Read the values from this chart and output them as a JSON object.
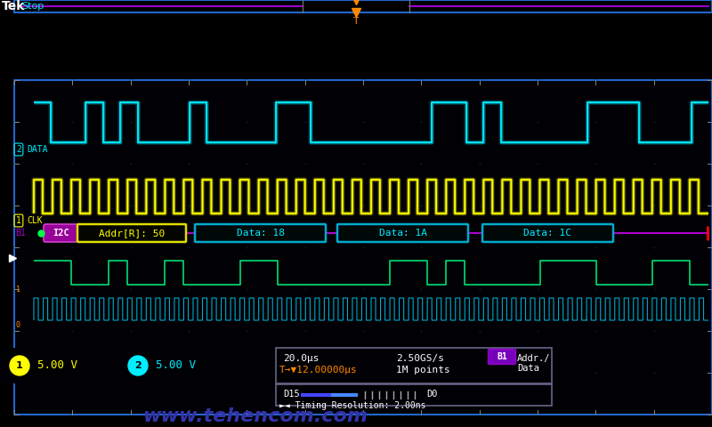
{
  "bg_color": "#000000",
  "screen_bg": "#000008",
  "border_color": "#2266cc",
  "cyan_color": "#00eeff",
  "yellow_color": "#ffff00",
  "purple_color": "#cc00ff",
  "green_color": "#00ff88",
  "orange_color": "#ff8800",
  "white_color": "#ffffff",
  "watermark_color": "#3333aa",
  "i2c_label_bg": "#aa00cc",
  "addr_box_color": "#cccc00",
  "data_box_color": "#00aacc",
  "ch1_label": "CLK",
  "ch2_label": "DATA",
  "addr_text": "Addr[R]: 50",
  "data1_text": "Data: 18",
  "data2_text": "Data: 1A",
  "data3_text": "Data: 1C",
  "ch1_volt": "5.00 V",
  "ch2_volt": "5.00 V",
  "time_div": "20.0μs",
  "sample_rate": "2.50GS/s",
  "trigger_time": "T→▼12.00000μs",
  "points": "1M points",
  "timing_res": "Timing Resolution: 2.00ns",
  "watermark": "www.tehencom.com",
  "fig_width": 8.0,
  "fig_height": 4.8,
  "sda_bits": [
    1,
    0,
    0,
    1,
    0,
    1,
    0,
    0,
    0,
    1,
    0,
    0,
    0,
    0,
    1,
    1,
    0,
    0,
    0,
    0,
    0,
    0,
    0,
    1,
    1,
    0,
    1,
    0,
    0,
    0,
    0,
    0,
    1,
    1,
    1,
    0,
    0,
    0,
    1
  ],
  "clk_n": 36,
  "dig1_bits": [
    1,
    1,
    0,
    0,
    1,
    0,
    0,
    1,
    0,
    0,
    0,
    1,
    1,
    0,
    0,
    0,
    0,
    0,
    0,
    1,
    1,
    0,
    1,
    0,
    0,
    0,
    0,
    1,
    1,
    1,
    0,
    0,
    0,
    1,
    1,
    0
  ],
  "dig2_n": 72
}
